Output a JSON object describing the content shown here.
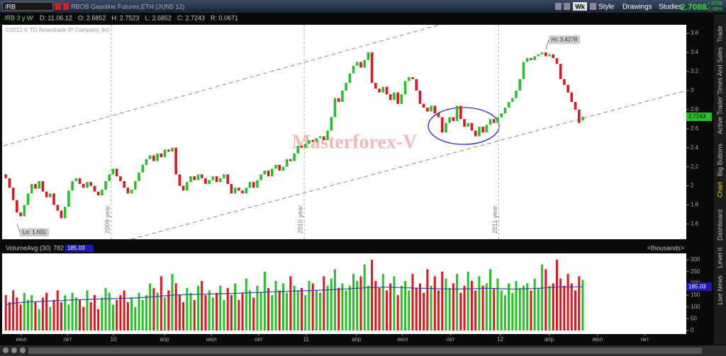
{
  "ui": {
    "symbol": "/RB",
    "description": "RBOB Gasoline Futures,ETH (JUN5 12)",
    "period_button": "Wk",
    "style": "Style",
    "drawings": "Drawings",
    "studies": "Studies",
    "last_price": "2.7088",
    "net_change": "+.0236",
    "percent_change": "+0.88%",
    "chart_label": "/RB 3 y W",
    "stats": [
      "D: 11.06.12",
      "O: 2.6852",
      "H: 2.7523",
      "L: 2.6852",
      "C: 2.7243",
      "R: 0.0671"
    ],
    "copyright": "©2012 © TD Ameritrade IP Company, Inc.",
    "watermark": "Masterforex-V",
    "tabs": [
      "Trade",
      "Times And Sales",
      "Active Trader",
      "Big Buttons",
      "Chart",
      "Dashboard",
      "Level II",
      "Live News"
    ]
  },
  "chart_data": [
    {
      "type": "candlestick",
      "up_color": "#22c322",
      "down_color": "#e0141e",
      "xlim": [
        -1,
        184
      ],
      "ylim": [
        1.44,
        3.69
      ],
      "yticks": [
        1.6,
        1.8,
        2,
        2.2,
        2.4,
        2.6,
        2.8,
        3,
        3.2,
        3.4,
        3.6
      ],
      "xticks": [
        {
          "value": 4.2,
          "label": "июл"
        },
        {
          "value": 16.7,
          "label": "окт"
        },
        {
          "value": 29.1,
          "label": "10"
        },
        {
          "value": 42.9,
          "label": "апр"
        },
        {
          "value": 55.6,
          "label": "июл"
        },
        {
          "value": 68.4,
          "label": "окт"
        },
        {
          "value": 81.2,
          "label": "11"
        },
        {
          "value": 94.8,
          "label": "апр"
        },
        {
          "value": 107.3,
          "label": "июл"
        },
        {
          "value": 120.3,
          "label": "окт"
        },
        {
          "value": 133.7,
          "label": "12"
        },
        {
          "value": 146.9,
          "label": "апр"
        },
        {
          "value": 160,
          "label": "июл"
        },
        {
          "value": 172.8,
          "label": "окт"
        }
      ],
      "year_markers": [
        {
          "x": 28.5,
          "label": "2009 year"
        },
        {
          "x": 80.7,
          "label": "2010 year"
        },
        {
          "x": 133.3,
          "label": "2011 year"
        }
      ],
      "annotations": [
        {
          "x": 146,
          "value": 3.4278,
          "label": "Hi: 3.4278"
        },
        {
          "x": 3,
          "value": 1.601,
          "label": "Lo: 1.601"
        }
      ],
      "open": [
        2.12,
        2.08,
        1.98,
        1.85,
        1.72,
        1.68,
        1.8,
        1.92,
        2.02,
        1.97,
        2.05,
        1.94,
        1.88,
        1.92,
        1.8,
        1.74,
        1.66,
        1.78,
        1.95,
        2.05,
        2.08,
        2.02,
        1.98,
        2.04,
        2.0,
        1.94,
        1.9,
        1.96,
        2.05,
        2.12,
        2.18,
        2.1,
        2.05,
        1.98,
        1.92,
        1.96,
        2.05,
        2.14,
        2.22,
        2.28,
        2.32,
        2.26,
        2.34,
        2.3,
        2.38,
        2.36,
        2.4,
        2.12,
        2.0,
        1.95,
        2.04,
        2.1,
        2.06,
        2.12,
        2.08,
        2.02,
        2.06,
        2.1,
        2.04,
        2.08,
        2.12,
        2.02,
        1.92,
        1.98,
        1.95,
        1.92,
        1.98,
        2.04,
        1.98,
        2.06,
        2.12,
        2.16,
        2.1,
        2.18,
        2.22,
        2.16,
        2.2,
        2.28,
        2.26,
        2.34,
        2.42,
        2.4,
        2.44,
        2.48,
        2.46,
        2.5,
        2.52,
        2.48,
        2.58,
        2.72,
        2.92,
        2.88,
        3.0,
        3.08,
        3.18,
        3.26,
        3.3,
        3.24,
        3.32,
        3.4,
        3.08,
        3.02,
        2.98,
        3.04,
        2.96,
        2.9,
        2.98,
        2.86,
        2.96,
        3.1,
        3.14,
        3.12,
        3.0,
        2.86,
        2.82,
        2.78,
        2.84,
        2.76,
        2.72,
        2.56,
        2.66,
        2.72,
        2.68,
        2.84,
        2.7,
        2.62,
        2.66,
        2.58,
        2.52,
        2.62,
        2.56,
        2.64,
        2.7,
        2.66,
        2.72,
        2.76,
        2.82,
        2.88,
        2.92,
        3.0,
        3.12,
        3.3,
        3.34,
        3.32,
        3.36,
        3.38,
        3.4,
        3.36,
        3.38,
        3.34,
        3.28,
        3.12,
        3.06,
        2.98,
        2.88,
        2.8,
        2.6852
      ],
      "close": [
        2.08,
        1.98,
        1.85,
        1.72,
        1.68,
        1.8,
        1.92,
        2.02,
        1.97,
        2.05,
        1.94,
        1.88,
        1.92,
        1.8,
        1.74,
        1.66,
        1.78,
        1.95,
        2.05,
        2.08,
        2.02,
        1.98,
        2.04,
        2.0,
        1.94,
        1.9,
        1.96,
        2.05,
        2.12,
        2.18,
        2.1,
        2.05,
        1.98,
        1.92,
        1.96,
        2.05,
        2.14,
        2.22,
        2.28,
        2.32,
        2.26,
        2.34,
        2.3,
        2.38,
        2.36,
        2.4,
        2.12,
        2.0,
        1.95,
        2.04,
        2.1,
        2.06,
        2.12,
        2.08,
        2.02,
        2.06,
        2.1,
        2.04,
        2.08,
        2.12,
        2.02,
        1.92,
        1.98,
        1.95,
        1.92,
        1.98,
        2.04,
        1.98,
        2.06,
        2.12,
        2.16,
        2.1,
        2.18,
        2.22,
        2.16,
        2.2,
        2.28,
        2.26,
        2.34,
        2.42,
        2.4,
        2.44,
        2.48,
        2.46,
        2.5,
        2.52,
        2.48,
        2.58,
        2.72,
        2.92,
        2.88,
        3.0,
        3.08,
        3.18,
        3.26,
        3.3,
        3.24,
        3.32,
        3.4,
        3.08,
        3.02,
        2.98,
        3.04,
        2.96,
        2.9,
        2.98,
        2.86,
        2.96,
        3.1,
        3.14,
        3.12,
        3.0,
        2.86,
        2.82,
        2.78,
        2.84,
        2.76,
        2.72,
        2.56,
        2.66,
        2.72,
        2.68,
        2.84,
        2.7,
        2.62,
        2.66,
        2.58,
        2.52,
        2.62,
        2.56,
        2.64,
        2.7,
        2.66,
        2.72,
        2.76,
        2.82,
        2.88,
        2.92,
        3.0,
        3.12,
        3.3,
        3.34,
        3.32,
        3.36,
        3.38,
        3.4,
        3.36,
        3.38,
        3.34,
        3.28,
        3.12,
        3.06,
        2.98,
        2.88,
        2.8,
        2.66,
        2.7243
      ]
    },
    {
      "type": "volume",
      "title": "VolumeAvg (30)",
      "header_value": "782",
      "unit_label": "<thousands>",
      "xlim": [
        -1,
        184
      ],
      "ylim": [
        -15,
        327
      ],
      "yticks": [
        0,
        50,
        100,
        150,
        200,
        250,
        300
      ],
      "series": [
        {
          "name": "Volume",
          "values": [
            150,
            120,
            170,
            140,
            110,
            160,
            130,
            150,
            120,
            90,
            140,
            160,
            100,
            130,
            170,
            120,
            150,
            110,
            160,
            140,
            130,
            100,
            170,
            120,
            150,
            90,
            140,
            180,
            160,
            110,
            130,
            150,
            170,
            120,
            140,
            100,
            160,
            130,
            150,
            200,
            180,
            160,
            230,
            140,
            170,
            240,
            200,
            150,
            120,
            180,
            160,
            130,
            190,
            210,
            150,
            170,
            140,
            160,
            190,
            130,
            180,
            150,
            200,
            130,
            160,
            220,
            170,
            140,
            190,
            160,
            250,
            180,
            150,
            210,
            170,
            200,
            160,
            230,
            190,
            170,
            180,
            150,
            210,
            200,
            170,
            160,
            230,
            190,
            220,
            260,
            180,
            200,
            170,
            190,
            240,
            210,
            230,
            280,
            190,
            300,
            210,
            180,
            240,
            170,
            200,
            230,
            150,
            190,
            210,
            170,
            240,
            180,
            200,
            160,
            260,
            190,
            230,
            170,
            250,
            220,
            180,
            200,
            240,
            160,
            190,
            250,
            210,
            170,
            230,
            190,
            200,
            260,
            180,
            220,
            170,
            150,
            200,
            160,
            210,
            180,
            190,
            200,
            170,
            220,
            180,
            280,
            260,
            190,
            200,
            300,
            220,
            190,
            240,
            200,
            170,
            230,
            215
          ]
        },
        {
          "name": "VolumeAvg",
          "color": "#3a3ab0",
          "values": [
            110,
            112,
            115,
            117,
            118,
            120,
            121,
            122,
            122,
            123,
            124,
            125,
            125,
            126,
            127,
            127,
            128,
            129,
            130,
            130,
            131,
            131,
            132,
            132,
            133,
            133,
            134,
            134,
            135,
            135,
            136,
            136,
            137,
            137,
            138,
            138,
            139,
            140,
            141,
            142,
            143,
            144,
            146,
            147,
            148,
            150,
            151,
            151,
            152,
            152,
            152,
            153,
            153,
            154,
            154,
            155,
            155,
            155,
            156,
            156,
            157,
            157,
            158,
            158,
            159,
            160,
            160,
            161,
            161,
            162,
            163,
            163,
            164,
            164,
            165,
            165,
            166,
            167,
            167,
            168,
            168,
            169,
            169,
            170,
            170,
            171,
            172,
            172,
            173,
            174,
            175,
            176,
            176,
            177,
            178,
            179,
            180,
            181,
            182,
            183,
            183,
            183,
            184,
            184,
            183,
            183,
            182,
            182,
            181,
            181,
            180,
            180,
            179,
            179,
            178,
            178,
            177,
            177,
            177,
            176,
            176,
            176,
            176,
            176,
            177,
            177,
            177,
            178,
            178,
            178,
            179,
            179,
            178,
            178,
            177,
            177,
            176,
            176,
            176,
            176,
            177,
            177,
            178,
            178,
            179,
            180,
            181,
            182,
            183,
            184,
            184,
            185,
            185,
            185,
            185,
            185,
            185.03
          ]
        }
      ]
    }
  ]
}
